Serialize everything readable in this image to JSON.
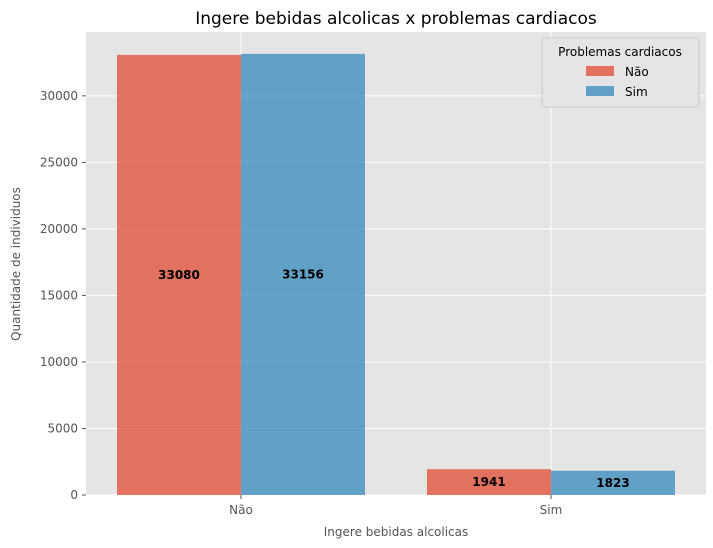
{
  "chart_data": {
    "type": "bar",
    "title": "Ingere bebidas alcolicas x problemas cardiacos",
    "xlabel": "Ingere bebidas alcolicas",
    "ylabel": "Quantidade de individuos",
    "categories": [
      "Não",
      "Sim"
    ],
    "series": [
      {
        "name": "Não",
        "values": [
          33080,
          1941
        ],
        "color": "#E24A33"
      },
      {
        "name": "Sim",
        "values": [
          33156,
          1823
        ],
        "color": "#348ABD"
      }
    ],
    "ylim": [
      0,
      34800
    ],
    "yticks": [
      0,
      5000,
      10000,
      15000,
      20000,
      25000,
      30000
    ],
    "grid": true,
    "legend": {
      "title": "Problemas cardiacos",
      "placement": "top-right"
    },
    "background": "#E5E5E5"
  }
}
